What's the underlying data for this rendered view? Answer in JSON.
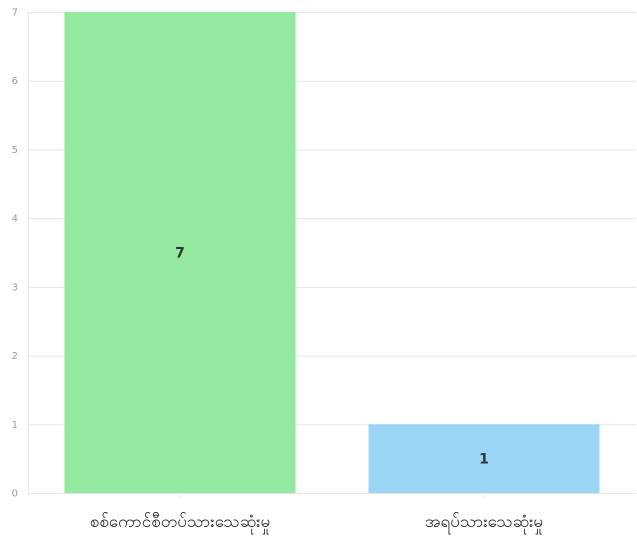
{
  "chart_data": {
    "type": "bar",
    "title": "",
    "xlabel": "",
    "ylabel": "",
    "ylim": [
      0,
      7
    ],
    "yticks": [
      0,
      1,
      2,
      3,
      4,
      5,
      6,
      7
    ],
    "grid": true,
    "legend": "none",
    "categories": [
      "စစ်ကောင်စီတပ်သားသေဆုံးမှု",
      "အရပ်သားသေဆုံးမှု"
    ],
    "values": [
      7,
      1
    ],
    "data_labels": [
      "7",
      "1"
    ],
    "colors": [
      "#93e9a0",
      "#9bd5f5"
    ]
  }
}
